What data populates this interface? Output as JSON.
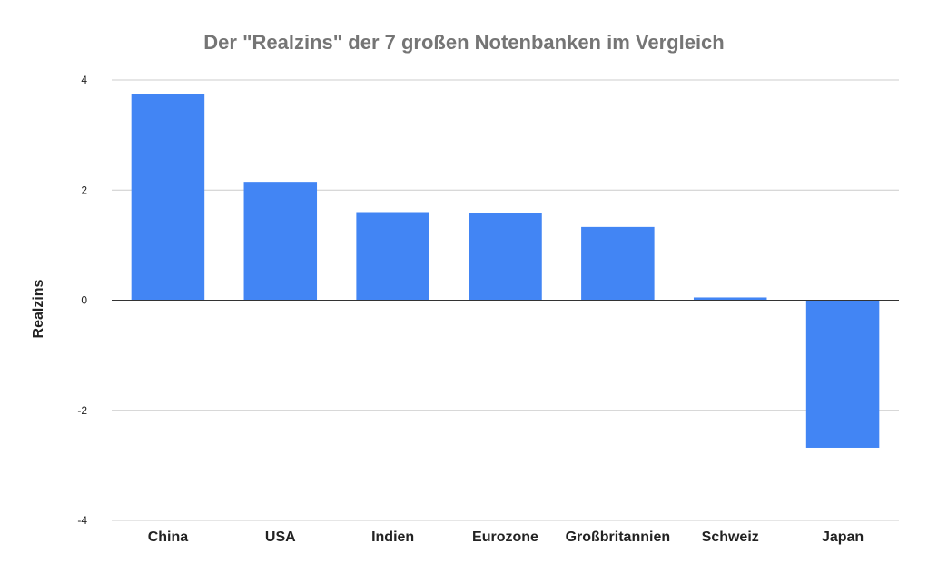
{
  "chart_data": {
    "type": "bar",
    "title": "Der \"Realzins\" der 7 großen Notenbanken im Vergleich",
    "xlabel": "",
    "ylabel": "Realzins",
    "categories": [
      "China",
      "USA",
      "Indien",
      "Eurozone",
      "Großbritannien",
      "Schweiz",
      "Japan"
    ],
    "values": [
      3.75,
      2.15,
      1.6,
      1.58,
      1.33,
      0.05,
      -2.68
    ],
    "ylim": [
      -4,
      4
    ],
    "yticks": [
      4,
      2,
      0,
      -2,
      -4
    ],
    "grid": true,
    "legend": "none",
    "bar_color": "#4285f4"
  }
}
